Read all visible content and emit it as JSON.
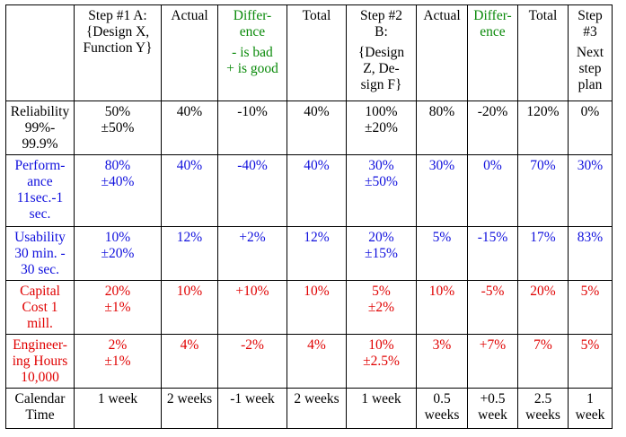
{
  "colors": {
    "black": "#000000",
    "blue": "#1010dd",
    "red": "#e00000",
    "green": "#0a8a0a"
  },
  "header": {
    "step1": [
      "Step #1 A:",
      "{Design X,",
      "Function Y}"
    ],
    "actual1": [
      "Actual"
    ],
    "diff1": [
      "Differ-",
      "ence"
    ],
    "diff1_note": [
      "- is bad",
      "+ is good"
    ],
    "total1": [
      "Total"
    ],
    "step2": [
      "Step #2",
      "B:"
    ],
    "step2_design": [
      "{Design",
      "Z, De-",
      "sign F}"
    ],
    "actual2": [
      "Actual"
    ],
    "diff2": [
      "Differ-",
      "ence"
    ],
    "total2": [
      "Total"
    ],
    "step3": [
      "Step",
      "#3"
    ],
    "step3_next": [
      "Next",
      "step",
      "plan"
    ]
  },
  "rows": [
    {
      "label": [
        "Reliability",
        "99%-",
        "99.9%"
      ],
      "cells": [
        [
          "50%",
          "±50%"
        ],
        [
          "40%"
        ],
        [
          "-10%"
        ],
        [
          "40%"
        ],
        [
          "100%",
          "±20%"
        ],
        [
          "80%"
        ],
        [
          "-20%"
        ],
        [
          "120%"
        ],
        [
          "0%"
        ]
      ]
    },
    {
      "label": [
        "Perform-",
        "ance",
        "11sec.-1",
        "sec."
      ],
      "cells": [
        [
          "80%",
          "±40%"
        ],
        [
          "40%"
        ],
        [
          "-40%"
        ],
        [
          "40%"
        ],
        [
          "30%",
          "±50%"
        ],
        [
          "30%"
        ],
        [
          "0%"
        ],
        [
          "70%"
        ],
        [
          "30%"
        ]
      ]
    },
    {
      "label": [
        "Usability",
        "30 min. -",
        "30 sec."
      ],
      "cells": [
        [
          "10%",
          "±20%"
        ],
        [
          "12%"
        ],
        [
          "+2%"
        ],
        [
          "12%"
        ],
        [
          "20%",
          "±15%"
        ],
        [
          "5%"
        ],
        [
          "-15%"
        ],
        [
          "17%"
        ],
        [
          "83%"
        ]
      ]
    },
    {
      "label": [
        "Capital",
        "Cost 1",
        "mill."
      ],
      "cells": [
        [
          "20%",
          "±1%"
        ],
        [
          "10%"
        ],
        [
          "+10%"
        ],
        [
          "10%"
        ],
        [
          "5%",
          "±2%"
        ],
        [
          "10%"
        ],
        [
          "-5%"
        ],
        [
          "20%"
        ],
        [
          "5%"
        ]
      ]
    },
    {
      "label": [
        "Engineer-",
        "ing Hours",
        "10,000"
      ],
      "cells": [
        [
          "2%",
          "±1%"
        ],
        [
          "4%"
        ],
        [
          "-2%"
        ],
        [
          "4%"
        ],
        [
          "10%",
          "±2.5%"
        ],
        [
          "3%"
        ],
        [
          "+7%"
        ],
        [
          "7%"
        ],
        [
          "5%"
        ]
      ]
    },
    {
      "label": [
        "Calendar",
        "Time"
      ],
      "cells": [
        [
          "1 week"
        ],
        [
          "2 weeks"
        ],
        [
          "-1 week"
        ],
        [
          "2 weeks"
        ],
        [
          "1 week"
        ],
        [
          "0.5",
          "weeks"
        ],
        [
          "+0.5",
          "week"
        ],
        [
          "2.5",
          "weeks"
        ],
        [
          "1",
          "week"
        ]
      ]
    }
  ]
}
